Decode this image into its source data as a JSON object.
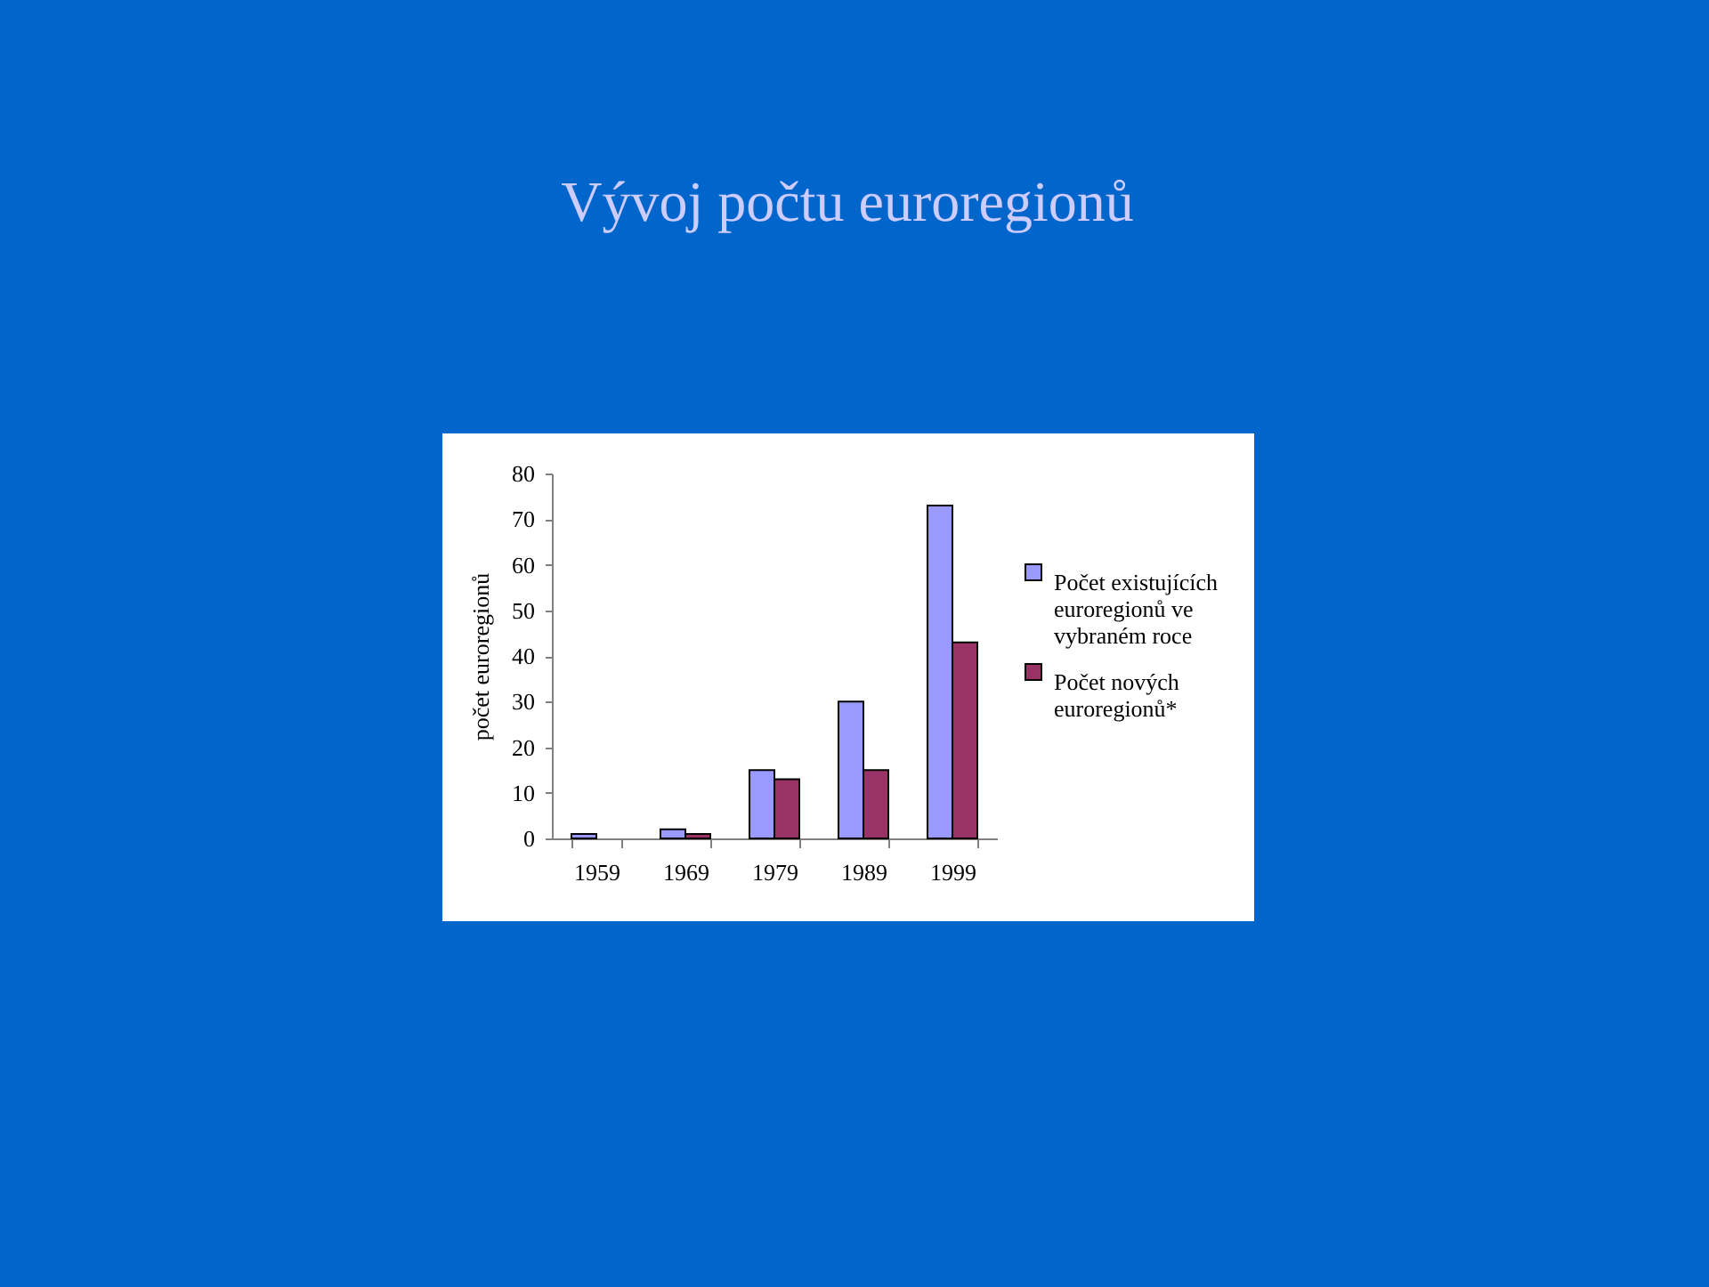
{
  "chart_data": {
    "type": "bar",
    "title": "Vývoj počtu euroregionů",
    "ylabel": "počet euroregionů",
    "categories": [
      "1959",
      "1969",
      "1979",
      "1989",
      "1999"
    ],
    "series": [
      {
        "name": "Počet existujících euroregionů ve vybraném roce",
        "color": "#9999ff",
        "values": [
          1,
          2,
          15,
          30,
          73
        ]
      },
      {
        "name": "Počet nových euroregionů*",
        "color": "#993366",
        "values": [
          null,
          1,
          13,
          15,
          43
        ]
      }
    ],
    "ylim": [
      0,
      80
    ],
    "yticks": [
      0,
      10,
      20,
      30,
      40,
      50,
      60,
      70,
      80
    ],
    "grid": false,
    "legend": "right"
  }
}
